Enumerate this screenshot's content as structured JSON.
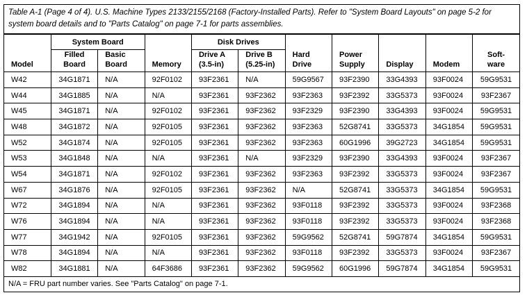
{
  "caption": "Table   A-1 (Page 4 of 4). U.S. Machine Types 2133/2155/2168 (Factory-Installed Parts).   Refer to \"System Board Layouts\" on page 5-2 for system board details and to \"Parts Catalog\" on page 7-1 for parts assemblies.",
  "groups": {
    "system_board": "System Board",
    "disk_drives": "Disk Drives"
  },
  "headers": [
    "Model",
    "Filled Board",
    "Basic Board",
    "Memory",
    "Drive A (3.5-in)",
    "Drive B (5.25-in)",
    "Hard Drive",
    "Power Supply",
    "Display",
    "Modem",
    "Soft-ware"
  ],
  "header_lines": [
    [
      "Model"
    ],
    [
      "Filled",
      "Board"
    ],
    [
      "Basic",
      "Board"
    ],
    [
      "Memory"
    ],
    [
      "Drive A",
      "(3.5-in)"
    ],
    [
      "Drive B",
      "(5.25-in)"
    ],
    [
      "Hard",
      "Drive"
    ],
    [
      "Power",
      "Supply"
    ],
    [
      "Display"
    ],
    [
      "Modem"
    ],
    [
      "Soft-",
      "ware"
    ]
  ],
  "rows": [
    [
      "W42",
      "34G1871",
      "N/A",
      "92F0102",
      "93F2361",
      "N/A",
      "59G9567",
      "93F2390",
      "33G4393",
      "93F0024",
      "59G9531"
    ],
    [
      "W44",
      "34G1885",
      "N/A",
      "N/A",
      "93F2361",
      "93F2362",
      "93F2363",
      "93F2392",
      "33G5373",
      "93F0024",
      "93F2367"
    ],
    [
      "W45",
      "34G1871",
      "N/A",
      "92F0102",
      "93F2361",
      "93F2362",
      "93F2329",
      "93F2390",
      "33G4393",
      "93F0024",
      "59G9531"
    ],
    [
      "W48",
      "34G1872",
      "N/A",
      "92F0105",
      "93F2361",
      "93F2362",
      "93F2363",
      "52G8741",
      "33G5373",
      "34G1854",
      "59G9531"
    ],
    [
      "W52",
      "34G1874",
      "N/A",
      "92F0105",
      "93F2361",
      "93F2362",
      "93F2363",
      "60G1996",
      "39G2723",
      "34G1854",
      "59G9531"
    ],
    [
      "W53",
      "34G1848",
      "N/A",
      "N/A",
      "93F2361",
      "N/A",
      "93F2329",
      "93F2390",
      "33G4393",
      "93F0024",
      "93F2367"
    ],
    [
      "W54",
      "34G1871",
      "N/A",
      "92F0102",
      "93F2361",
      "93F2362",
      "93F2363",
      "93F2392",
      "33G5373",
      "93F0024",
      "93F2367"
    ],
    [
      "W67",
      "34G1876",
      "N/A",
      "92F0105",
      "93F2361",
      "93F2362",
      "N/A",
      "52G8741",
      "33G5373",
      "34G1854",
      "59G9531"
    ],
    [
      "W72",
      "34G1894",
      "N/A",
      "N/A",
      "93F2361",
      "93F2362",
      "93F0118",
      "93F2392",
      "33G5373",
      "93F0024",
      "93F2368"
    ],
    [
      "W76",
      "34G1894",
      "N/A",
      "N/A",
      "93F2361",
      "93F2362",
      "93F0118",
      "93F2392",
      "33G5373",
      "93F0024",
      "93F2368"
    ],
    [
      "W77",
      "34G1942",
      "N/A",
      "92F0105",
      "93F2361",
      "93F2362",
      "59G9562",
      "52G8741",
      "59G7874",
      "34G1854",
      "59G9531"
    ],
    [
      "W78",
      "34G1894",
      "N/A",
      "N/A",
      "93F2361",
      "93F2362",
      "93F0118",
      "93F2392",
      "33G5373",
      "93F0024",
      "93F2367"
    ],
    [
      "W82",
      "34G1881",
      "N/A",
      "64F3686",
      "93F2361",
      "93F2362",
      "59G9562",
      "60G1996",
      "59G7874",
      "34G1854",
      "59G9531"
    ]
  ],
  "footnote": "N/A = FRU part number varies. See \"Parts Catalog\" on page 7-1."
}
